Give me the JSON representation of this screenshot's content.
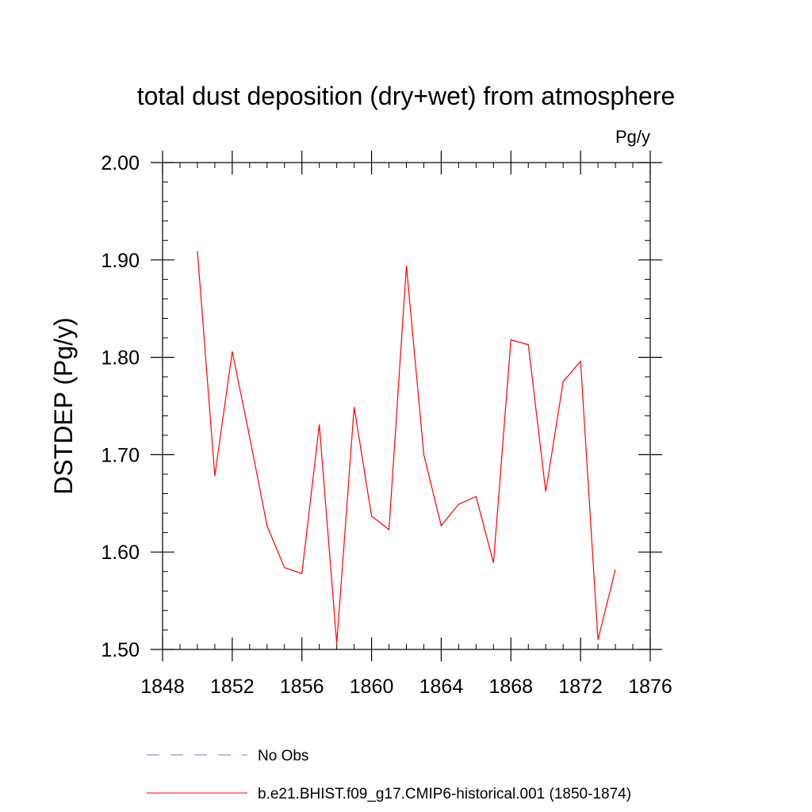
{
  "chart_data": {
    "type": "line",
    "title": "total dust deposition (dry+wet) from atmosphere",
    "units_label": "Pg/y",
    "ylabel": "DSTDEP  (Pg/y)",
    "xlabel": "",
    "xlim": [
      1848,
      1876
    ],
    "ylim": [
      1.5,
      2.0
    ],
    "xticks": [
      1848,
      1852,
      1856,
      1860,
      1864,
      1868,
      1872,
      1876
    ],
    "xtick_labels": [
      "1848",
      "1852",
      "1856",
      "1860",
      "1864",
      "1868",
      "1872",
      "1876"
    ],
    "yticks": [
      1.5,
      1.6,
      1.7,
      1.8,
      1.9,
      2.0
    ],
    "ytick_labels": [
      "1.50",
      "1.60",
      "1.70",
      "1.80",
      "1.90",
      "2.00"
    ],
    "grid": false,
    "legend_position": "bottom",
    "x": [
      1850,
      1851,
      1852,
      1853,
      1854,
      1855,
      1856,
      1857,
      1858,
      1859,
      1860,
      1861,
      1862,
      1863,
      1864,
      1865,
      1866,
      1867,
      1868,
      1869,
      1870,
      1871,
      1872,
      1873,
      1874
    ],
    "series": [
      {
        "name": "b.e21.BHIST.f09_g17.CMIP6-historical.001 (1850-1874)",
        "color": "#ff0000",
        "style": "solid",
        "values": [
          1.909,
          1.678,
          1.806,
          1.718,
          1.627,
          1.584,
          1.578,
          1.731,
          1.506,
          1.749,
          1.637,
          1.623,
          1.894,
          1.7,
          1.627,
          1.649,
          1.657,
          1.589,
          1.818,
          1.813,
          1.662,
          1.775,
          1.796,
          1.51,
          1.582
        ]
      }
    ],
    "legend": [
      {
        "label": "No Obs",
        "color": "#7b7bc8",
        "style": "dashed"
      },
      {
        "label": "b.e21.BHIST.f09_g17.CMIP6-historical.001 (1850-1874)",
        "color": "#ff0000",
        "style": "solid"
      }
    ]
  }
}
